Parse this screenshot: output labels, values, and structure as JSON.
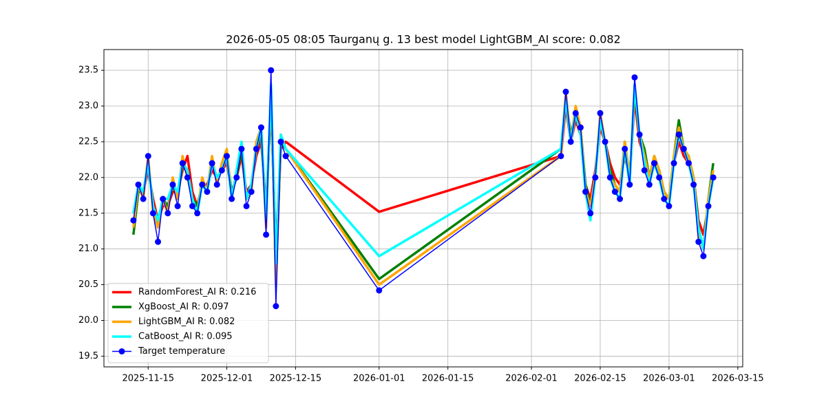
{
  "chart_data": {
    "type": "line",
    "title": "2026-05-05 08:05 Taurganų g. 13 best model LightGBM_AI score: 0.082",
    "x": [
      "2025-11-12",
      "2025-11-13",
      "2025-11-14",
      "2025-11-15",
      "2025-11-16",
      "2025-11-17",
      "2025-11-18",
      "2025-11-19",
      "2025-11-20",
      "2025-11-21",
      "2025-11-22",
      "2025-11-23",
      "2025-11-24",
      "2025-11-25",
      "2025-11-26",
      "2025-11-27",
      "2025-11-28",
      "2025-11-29",
      "2025-11-30",
      "2025-12-01",
      "2025-12-02",
      "2025-12-03",
      "2025-12-04",
      "2025-12-05",
      "2025-12-06",
      "2025-12-07",
      "2025-12-08",
      "2025-12-09",
      "2025-12-10",
      "2025-12-11",
      "2025-12-12",
      "2025-12-13",
      "2026-01-01",
      "2026-02-07",
      "2026-02-08",
      "2026-02-09",
      "2026-02-10",
      "2026-02-11",
      "2026-02-12",
      "2026-02-13",
      "2026-02-14",
      "2026-02-15",
      "2026-02-16",
      "2026-02-17",
      "2026-02-18",
      "2026-02-19",
      "2026-02-20",
      "2026-02-21",
      "2026-02-22",
      "2026-02-23",
      "2026-02-24",
      "2026-02-25",
      "2026-02-26",
      "2026-02-27",
      "2026-02-28",
      "2026-03-01",
      "2026-03-02",
      "2026-03-03",
      "2026-03-04",
      "2026-03-05",
      "2026-03-06",
      "2026-03-07",
      "2026-03-08",
      "2026-03-09",
      "2026-03-10"
    ],
    "series": [
      {
        "name": "RandomForest_AI R: 0.216",
        "color": "#ff0000",
        "width": 3.5,
        "marker": false,
        "values": [
          21.5,
          21.8,
          21.8,
          22.1,
          21.7,
          21.4,
          21.6,
          21.6,
          21.8,
          21.8,
          22.1,
          22.3,
          21.8,
          21.6,
          21.9,
          21.9,
          22.1,
          22.0,
          22.1,
          22.2,
          21.8,
          22.0,
          22.3,
          21.8,
          21.9,
          22.3,
          22.5,
          21.6,
          23.0,
          21.0,
          22.4,
          22.5,
          21.52,
          22.3,
          23.0,
          22.5,
          22.8,
          22.6,
          21.9,
          21.7,
          22.1,
          22.7,
          22.5,
          22.2,
          22.0,
          21.9,
          22.3,
          22.0,
          23.1,
          22.5,
          22.3,
          22.0,
          22.2,
          22.1,
          21.8,
          21.7,
          22.2,
          22.5,
          22.3,
          22.2,
          22.0,
          21.4,
          21.2,
          21.6,
          22.0
        ]
      },
      {
        "name": "XgBoost_AI R: 0.097",
        "color": "#008000",
        "width": 3.5,
        "marker": false,
        "values": [
          21.2,
          21.8,
          21.8,
          22.2,
          21.6,
          21.3,
          21.7,
          21.6,
          21.9,
          21.7,
          22.2,
          22.1,
          21.7,
          21.6,
          21.9,
          21.8,
          22.2,
          22.0,
          22.1,
          22.3,
          21.8,
          22.0,
          22.4,
          21.7,
          21.9,
          22.4,
          22.6,
          21.4,
          23.2,
          20.6,
          22.5,
          22.4,
          20.58,
          22.4,
          23.1,
          22.6,
          22.9,
          22.7,
          21.9,
          21.6,
          22.0,
          22.8,
          22.5,
          22.1,
          21.9,
          21.8,
          22.5,
          22.0,
          23.2,
          22.6,
          22.4,
          22.0,
          22.3,
          22.1,
          21.8,
          21.7,
          22.3,
          22.8,
          22.4,
          22.3,
          22.0,
          21.3,
          21.0,
          21.7,
          22.2
        ]
      },
      {
        "name": "LightGBM_AI R: 0.082",
        "color": "#ffa500",
        "width": 3.5,
        "marker": false,
        "values": [
          21.3,
          21.9,
          21.7,
          22.3,
          21.5,
          21.3,
          21.7,
          21.5,
          22.0,
          21.7,
          22.3,
          22.0,
          21.7,
          21.5,
          22.0,
          21.8,
          22.3,
          21.9,
          22.2,
          22.4,
          21.7,
          22.1,
          22.5,
          21.7,
          21.8,
          22.5,
          22.7,
          21.3,
          23.3,
          20.5,
          22.6,
          22.4,
          20.5,
          22.3,
          23.2,
          22.5,
          23.0,
          22.7,
          21.8,
          21.6,
          22.0,
          22.9,
          22.5,
          22.0,
          21.9,
          21.8,
          22.5,
          22.0,
          23.3,
          22.6,
          22.3,
          22.0,
          22.3,
          22.1,
          21.8,
          21.7,
          22.3,
          22.7,
          22.4,
          22.3,
          22.0,
          21.2,
          21.0,
          21.7,
          22.1
        ]
      },
      {
        "name": "CatBoost_AI R: 0.095",
        "color": "#00ffff",
        "width": 3.5,
        "marker": false,
        "values": [
          21.5,
          21.9,
          21.8,
          22.2,
          21.6,
          21.4,
          21.7,
          21.7,
          21.9,
          21.8,
          22.2,
          22.1,
          21.7,
          21.5,
          21.9,
          21.8,
          22.2,
          22.0,
          22.1,
          22.3,
          21.7,
          22.1,
          22.5,
          21.7,
          21.9,
          22.4,
          22.7,
          21.4,
          23.3,
          20.8,
          22.6,
          22.4,
          20.9,
          22.4,
          23.1,
          22.5,
          22.9,
          22.6,
          21.8,
          21.4,
          22.0,
          22.8,
          22.5,
          22.0,
          21.8,
          21.7,
          22.4,
          21.9,
          23.3,
          22.6,
          22.2,
          21.9,
          22.2,
          22.0,
          21.7,
          21.6,
          22.2,
          22.6,
          22.4,
          22.2,
          21.9,
          21.3,
          21.0,
          21.6,
          22.0
        ]
      },
      {
        "name": "Target temperature",
        "color": "#0000ff",
        "width": 1.5,
        "marker": true,
        "values": [
          21.4,
          21.9,
          21.7,
          22.3,
          21.5,
          21.1,
          21.7,
          21.5,
          21.9,
          21.6,
          22.2,
          22.0,
          21.6,
          21.5,
          21.9,
          21.8,
          22.2,
          21.9,
          22.1,
          22.3,
          21.7,
          22.0,
          22.4,
          21.6,
          21.8,
          22.4,
          22.7,
          21.2,
          23.5,
          20.2,
          22.5,
          22.3,
          20.42,
          22.3,
          23.2,
          22.5,
          22.9,
          22.7,
          21.8,
          21.5,
          22.0,
          22.9,
          22.5,
          22.0,
          21.8,
          21.7,
          22.4,
          21.9,
          23.4,
          22.6,
          22.1,
          21.9,
          22.2,
          22.0,
          21.7,
          21.6,
          22.2,
          22.6,
          22.4,
          22.2,
          21.9,
          21.1,
          20.9,
          21.6,
          22.0
        ]
      }
    ],
    "xlim": [
      "2025-11-06",
      "2026-03-16"
    ],
    "xticks": [
      "2025-11-15",
      "2025-12-01",
      "2025-12-15",
      "2026-01-01",
      "2026-01-15",
      "2026-02-01",
      "2026-02-15",
      "2026-03-01",
      "2026-03-15"
    ],
    "ylim": [
      19.35,
      23.79
    ],
    "yticks": [
      19.5,
      {
        "value": 20,
        "label": "20.0"
      },
      20.5,
      {
        "value": 21,
        "label": "21.0"
      },
      21.5,
      {
        "value": 22,
        "label": "22.0"
      },
      22.5,
      {
        "value": 23,
        "label": "23.0"
      },
      23.5
    ],
    "grid": true,
    "legend": "lower left"
  }
}
